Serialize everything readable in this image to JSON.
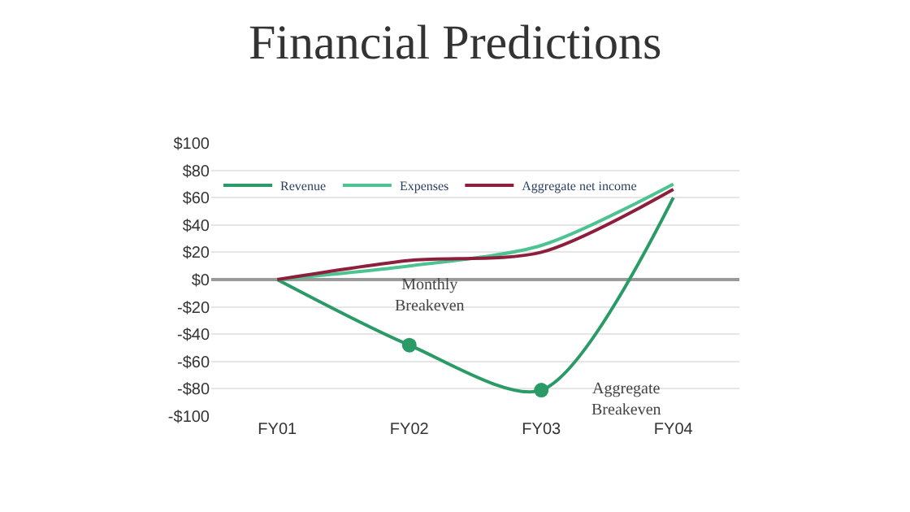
{
  "chart_data": {
    "type": "line",
    "title": "Financial Predictions",
    "categories": [
      "FY01",
      "FY02",
      "FY03",
      "FY04"
    ],
    "series": [
      {
        "name": "Revenue",
        "color": "#2a9a66",
        "values": [
          0,
          -48,
          -81,
          60
        ]
      },
      {
        "name": "Expenses",
        "color": "#4cc391",
        "values": [
          0,
          10,
          25,
          70
        ]
      },
      {
        "name": "Aggregate net income",
        "color": "#8e1f3c",
        "values": [
          0,
          14,
          20,
          66
        ]
      },
      {
        "type": "scatter",
        "color": "#2a9a66",
        "x": [
          "FY02",
          "FY03"
        ],
        "values": [
          -48,
          -81
        ],
        "marker": "circle"
      }
    ],
    "ylim": [
      -100,
      100
    ],
    "yticks": [
      {
        "value": -100,
        "label": "-$100"
      },
      {
        "value": -80,
        "label": "-$80"
      },
      {
        "value": -60,
        "label": "-$60"
      },
      {
        "value": -40,
        "label": "-$40"
      },
      {
        "value": -20,
        "label": "-$20"
      },
      {
        "value": 0,
        "label": "$0"
      },
      {
        "value": 20,
        "label": "$20"
      },
      {
        "value": 40,
        "label": "$40"
      },
      {
        "value": 60,
        "label": "$60"
      },
      {
        "value": 80,
        "label": "$80"
      },
      {
        "value": 100,
        "label": "$100"
      }
    ],
    "annotations": [
      "Monthly\nBreakeven",
      "Aggregate\nBreakeven"
    ],
    "grid": "y",
    "legend": "top"
  }
}
